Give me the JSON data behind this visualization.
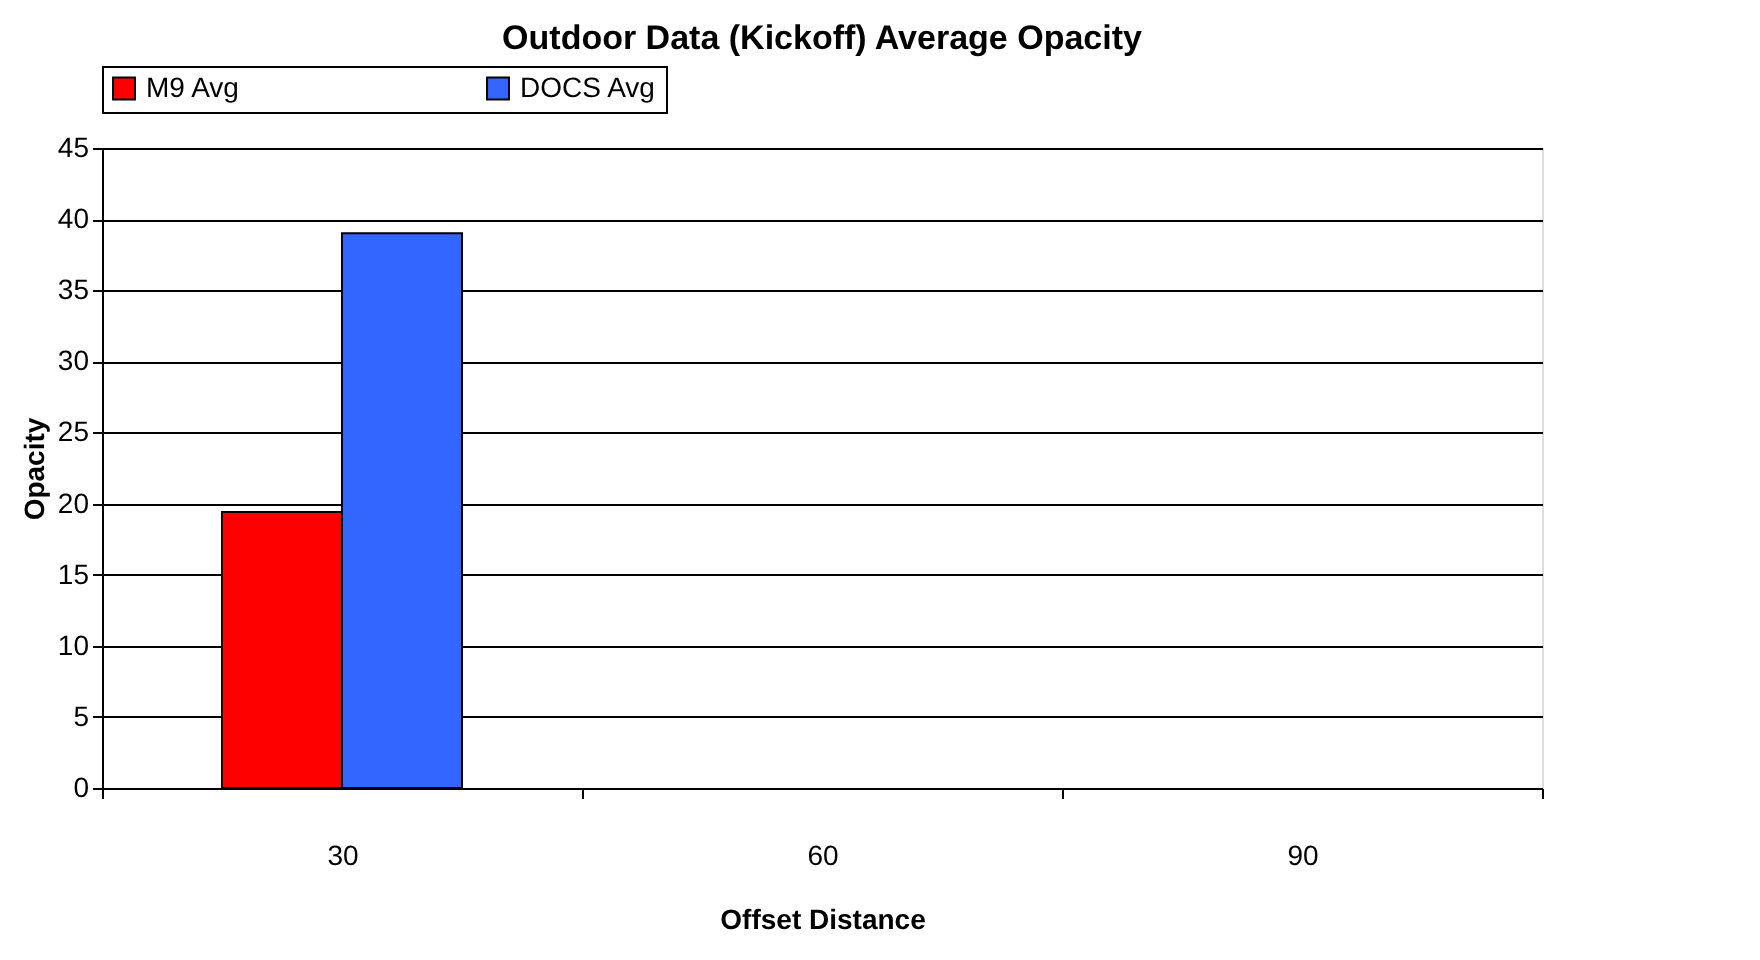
{
  "chart_data": {
    "type": "bar",
    "title": "Outdoor Data (Kickoff) Average Opacity",
    "xlabel": "Offset Distance",
    "ylabel": "Opacity",
    "categories": [
      "30",
      "60",
      "90"
    ],
    "series": [
      {
        "name": "M9 Avg",
        "color": "#ff0000",
        "values": [
          19.4,
          null,
          null
        ]
      },
      {
        "name": "DOCS Avg",
        "color": "#3366ff",
        "values": [
          39.0,
          null,
          null
        ]
      }
    ],
    "ylim": [
      0,
      45
    ],
    "yticks": [
      0,
      5,
      10,
      15,
      20,
      25,
      30,
      35,
      40,
      45
    ],
    "grid": "y",
    "legend": "top"
  }
}
